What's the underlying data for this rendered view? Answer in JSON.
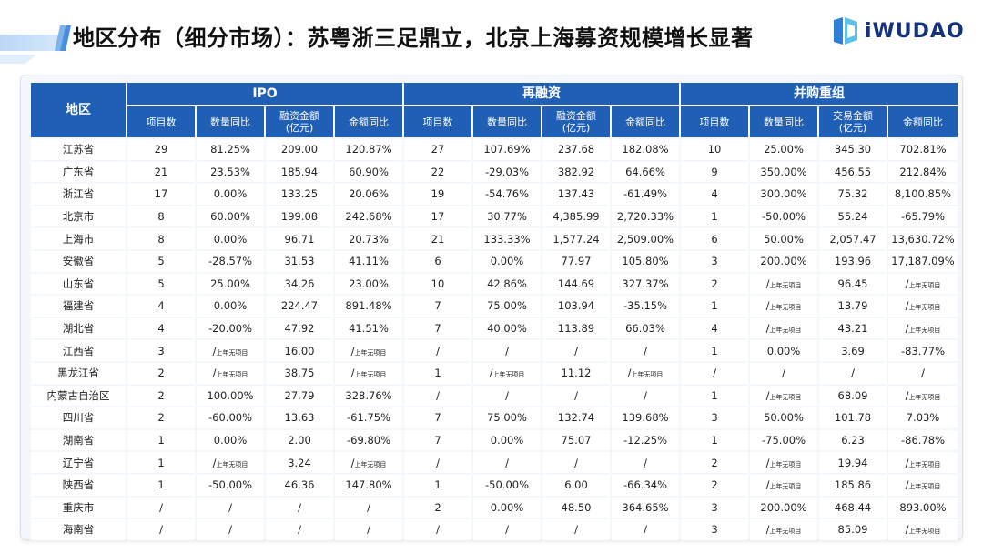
{
  "header": {
    "title": "地区分布（细分市场）：苏粤浙三足鼎立，北京上海募资规模增长显著",
    "logo_text": "iWUDAO"
  },
  "table": {
    "region_header": "地区",
    "groups": [
      "IPO",
      "再融资",
      "并购重组"
    ],
    "sub_headers": [
      [
        "项目数",
        "数量同比",
        "融资金额\n(亿元)",
        "金额同比"
      ],
      [
        "项目数",
        "数量同比",
        "融资金额\n(亿元)",
        "金额同比"
      ],
      [
        "项目数",
        "数量同比",
        "交易金额\n(亿元)",
        "金额同比"
      ]
    ],
    "no_prior_label": "上年无项目",
    "rows": [
      [
        "江苏省",
        "29",
        "81.25%",
        "209.00",
        "120.87%",
        "27",
        "107.69%",
        "237.68",
        "182.08%",
        "10",
        "25.00%",
        "345.30",
        "702.81%"
      ],
      [
        "广东省",
        "21",
        "23.53%",
        "185.94",
        "60.90%",
        "22",
        "-29.03%",
        "382.92",
        "64.66%",
        "9",
        "350.00%",
        "456.55",
        "212.84%"
      ],
      [
        "浙江省",
        "17",
        "0.00%",
        "133.25",
        "20.06%",
        "19",
        "-54.76%",
        "137.43",
        "-61.49%",
        "4",
        "300.00%",
        "75.32",
        "8,100.85%"
      ],
      [
        "北京市",
        "8",
        "60.00%",
        "199.08",
        "242.68%",
        "17",
        "30.77%",
        "4,385.99",
        "2,720.33%",
        "1",
        "-50.00%",
        "55.24",
        "-65.79%"
      ],
      [
        "上海市",
        "8",
        "0.00%",
        "96.71",
        "20.73%",
        "21",
        "133.33%",
        "1,577.24",
        "2,509.00%",
        "6",
        "50.00%",
        "2,057.47",
        "13,630.72%"
      ],
      [
        "安徽省",
        "5",
        "-28.57%",
        "31.53",
        "41.11%",
        "6",
        "0.00%",
        "77.97",
        "105.80%",
        "3",
        "200.00%",
        "193.96",
        "17,187.09%"
      ],
      [
        "山东省",
        "5",
        "25.00%",
        "34.26",
        "23.00%",
        "10",
        "42.86%",
        "144.69",
        "327.37%",
        "2",
        "/NP",
        "96.45",
        "/NP"
      ],
      [
        "福建省",
        "4",
        "0.00%",
        "224.47",
        "891.48%",
        "7",
        "75.00%",
        "103.94",
        "-35.15%",
        "1",
        "/NP",
        "13.79",
        "/NP"
      ],
      [
        "湖北省",
        "4",
        "-20.00%",
        "47.92",
        "41.51%",
        "7",
        "40.00%",
        "113.89",
        "66.03%",
        "4",
        "/NP",
        "43.21",
        "/NP"
      ],
      [
        "江西省",
        "3",
        "/NP",
        "16.00",
        "/NP",
        "/",
        "/",
        "/",
        "/",
        "1",
        "0.00%",
        "3.69",
        "-83.77%"
      ],
      [
        "黑龙江省",
        "2",
        "/NP",
        "38.75",
        "/NP",
        "1",
        "/NP",
        "11.12",
        "/NP",
        "/",
        "/",
        "/",
        "/"
      ],
      [
        "内蒙古自治区",
        "2",
        "100.00%",
        "27.79",
        "328.76%",
        "/",
        "/",
        "/",
        "/",
        "1",
        "/NP",
        "68.09",
        "/NP"
      ],
      [
        "四川省",
        "2",
        "-60.00%",
        "13.63",
        "-61.75%",
        "7",
        "75.00%",
        "132.74",
        "139.68%",
        "3",
        "50.00%",
        "101.78",
        "7.03%"
      ],
      [
        "湖南省",
        "1",
        "0.00%",
        "2.00",
        "-69.80%",
        "7",
        "0.00%",
        "75.07",
        "-12.25%",
        "1",
        "-75.00%",
        "6.23",
        "-86.78%"
      ],
      [
        "辽宁省",
        "1",
        "/NP",
        "3.24",
        "/NP",
        "/",
        "/",
        "/",
        "/",
        "2",
        "/NP",
        "19.94",
        "/NP"
      ],
      [
        "陕西省",
        "1",
        "-50.00%",
        "46.36",
        "147.80%",
        "1",
        "-50.00%",
        "6.00",
        "-66.34%",
        "2",
        "/NP",
        "185.86",
        "/NP"
      ],
      [
        "重庆市",
        "/",
        "/",
        "/",
        "/",
        "2",
        "0.00%",
        "48.50",
        "364.65%",
        "3",
        "200.00%",
        "468.44",
        "893.00%"
      ],
      [
        "海南省",
        "/",
        "/",
        "/",
        "/",
        "/",
        "/",
        "/",
        "/",
        "3",
        "/NP",
        "85.09",
        "/NP"
      ]
    ]
  },
  "colors": {
    "header_blue": "#1f5fb5",
    "logo_navy": "#14337a"
  }
}
